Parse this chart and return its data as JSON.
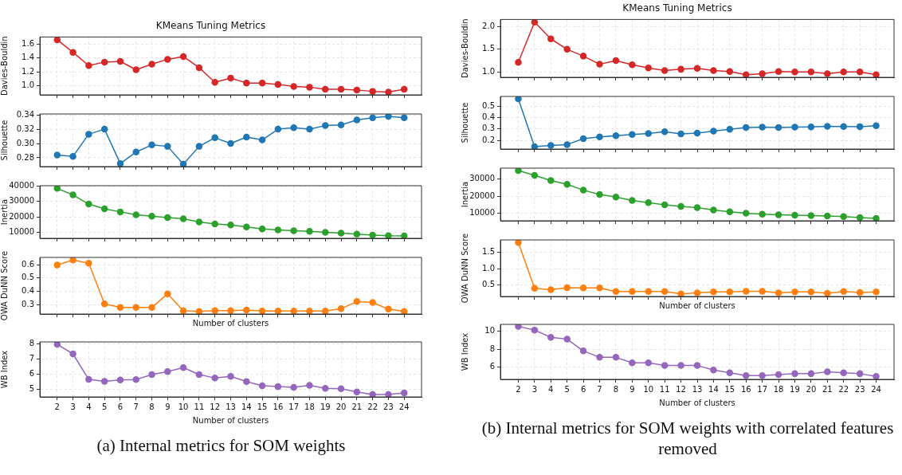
{
  "chart_data": [
    {
      "type": "line",
      "title": "KMeans Tuning Metrics",
      "ylabel": "Davies-Bouldin",
      "x": [
        2,
        3,
        4,
        5,
        6,
        7,
        8,
        9,
        10,
        11,
        12,
        13,
        14,
        15,
        16,
        17,
        18,
        19,
        20,
        21,
        22,
        23,
        24
      ],
      "xlim": [
        0.9,
        25.1
      ],
      "xticks": [
        2,
        3,
        4,
        5,
        6,
        7,
        8,
        9,
        10,
        11,
        12,
        13,
        14,
        15,
        16,
        17,
        18,
        19,
        20,
        21,
        22,
        23,
        24
      ],
      "ylim": [
        0.87,
        1.7
      ],
      "yticks": [
        {
          "value": 1,
          "label": "1.0"
        },
        1.2,
        1.4,
        1.6
      ],
      "tick_labels": "y",
      "grid": true,
      "marker": "circle",
      "series": [
        {
          "color": "#d62728",
          "values": [
            1.66,
            1.48,
            1.29,
            1.34,
            1.35,
            1.23,
            1.31,
            1.38,
            1.42,
            1.26,
            1.05,
            1.11,
            1.04,
            1.04,
            1.02,
            0.99,
            0.98,
            0.95,
            0.95,
            0.94,
            0.92,
            0.91,
            0.95
          ]
        }
      ]
    },
    {
      "type": "line",
      "ylabel": "Silhouette",
      "x": [
        2,
        3,
        4,
        5,
        6,
        7,
        8,
        9,
        10,
        11,
        12,
        13,
        14,
        15,
        16,
        17,
        18,
        19,
        20,
        21,
        22,
        23,
        24
      ],
      "xlim": [
        0.9,
        25.1
      ],
      "xticks": [
        2,
        3,
        4,
        5,
        6,
        7,
        8,
        9,
        10,
        11,
        12,
        13,
        14,
        15,
        16,
        17,
        18,
        19,
        20,
        21,
        22,
        23,
        24
      ],
      "ylim": [
        0.2677,
        0.3413
      ],
      "yticks": [
        0.28,
        {
          "value": 0.3,
          "label": "0.30"
        },
        0.32,
        0.34
      ],
      "tick_labels": "y",
      "grid": true,
      "marker": "circle",
      "series": [
        {
          "color": "#1f77b4",
          "values": [
            0.284,
            0.282,
            0.313,
            0.32,
            0.272,
            0.288,
            0.298,
            0.296,
            0.271,
            0.296,
            0.308,
            0.3,
            0.309,
            0.305,
            0.32,
            0.322,
            0.32,
            0.325,
            0.326,
            0.333,
            0.336,
            0.338,
            0.336
          ]
        }
      ]
    },
    {
      "type": "line",
      "ylabel": "Inertia",
      "x": [
        2,
        3,
        4,
        5,
        6,
        7,
        8,
        9,
        10,
        11,
        12,
        13,
        14,
        15,
        16,
        17,
        18,
        19,
        20,
        21,
        22,
        23,
        24
      ],
      "xlim": [
        0.9,
        25.1
      ],
      "xticks": [
        2,
        3,
        4,
        5,
        6,
        7,
        8,
        9,
        10,
        11,
        12,
        13,
        14,
        15,
        16,
        17,
        18,
        19,
        20,
        21,
        22,
        23,
        24
      ],
      "ylim": [
        6375,
        40100
      ],
      "yticks": [
        10000,
        20000,
        30000,
        40000
      ],
      "tick_labels": "y",
      "grid": true,
      "marker": "circle",
      "series": [
        {
          "color": "#2ca02c",
          "values": [
            38400,
            34200,
            28300,
            25300,
            23300,
            21500,
            20600,
            19600,
            18900,
            16900,
            15600,
            14900,
            13600,
            12400,
            11800,
            11200,
            10900,
            10200,
            9700,
            9100,
            8400,
            8000,
            7900
          ]
        }
      ]
    },
    {
      "type": "line",
      "ylabel": "OWA DuNN Score",
      "xlabel": "Number of clusters",
      "x": [
        2,
        3,
        4,
        5,
        6,
        7,
        8,
        9,
        10,
        11,
        12,
        13,
        14,
        15,
        16,
        17,
        18,
        19,
        20,
        21,
        22,
        23,
        24
      ],
      "xlim": [
        0.9,
        25.1
      ],
      "xticks": [
        2,
        3,
        4,
        5,
        6,
        7,
        8,
        9,
        10,
        11,
        12,
        13,
        14,
        15,
        16,
        17,
        18,
        19,
        20,
        21,
        22,
        23,
        24
      ],
      "ylim": [
        0.228,
        0.654
      ],
      "yticks": [
        0.3,
        0.4,
        0.5,
        0.6
      ],
      "tick_labels": "y",
      "grid": true,
      "marker": "circle",
      "series": [
        {
          "color": "#ff7f0e",
          "values": [
            0.597,
            0.635,
            0.61,
            0.305,
            0.277,
            0.277,
            0.277,
            0.38,
            0.252,
            0.248,
            0.253,
            0.253,
            0.258,
            0.25,
            0.25,
            0.25,
            0.25,
            0.25,
            0.268,
            0.322,
            0.315,
            0.265,
            0.247
          ]
        }
      ]
    },
    {
      "type": "line",
      "ylabel": "WB Index",
      "xlabel": "Number of clusters",
      "x": [
        2,
        3,
        4,
        5,
        6,
        7,
        8,
        9,
        10,
        11,
        12,
        13,
        14,
        15,
        16,
        17,
        18,
        19,
        20,
        21,
        22,
        23,
        24
      ],
      "xlim": [
        0.9,
        25.1
      ],
      "xticks": [
        2,
        3,
        4,
        5,
        6,
        7,
        8,
        9,
        10,
        11,
        12,
        13,
        14,
        15,
        16,
        17,
        18,
        19,
        20,
        21,
        22,
        23,
        24
      ],
      "ylim": [
        4.52,
        8.11
      ],
      "yticks": [
        5,
        6,
        7,
        8
      ],
      "grid": true,
      "marker": "circle",
      "annotations": [
        "(a) Internal metrics for SOM weights"
      ],
      "series": [
        {
          "color": "#9467bd",
          "values": [
            7.95,
            7.33,
            5.66,
            5.53,
            5.63,
            5.65,
            5.98,
            6.17,
            6.43,
            5.98,
            5.75,
            5.86,
            5.52,
            5.25,
            5.19,
            5.15,
            5.27,
            5.08,
            5.05,
            4.85,
            4.68,
            4.68,
            4.78
          ]
        }
      ]
    },
    {
      "type": "line",
      "title": "KMeans Tuning Metrics",
      "ylabel": "Davies-Bouldin",
      "x": [
        2,
        3,
        4,
        5,
        6,
        7,
        8,
        9,
        10,
        11,
        12,
        13,
        14,
        15,
        16,
        17,
        18,
        19,
        20,
        21,
        22,
        23,
        24
      ],
      "xlim": [
        0.9,
        25.1
      ],
      "xticks": [
        2,
        3,
        4,
        5,
        6,
        7,
        8,
        9,
        10,
        11,
        12,
        13,
        14,
        15,
        16,
        17,
        18,
        19,
        20,
        21,
        22,
        23,
        24
      ],
      "ylim": [
        0.882,
        2.158
      ],
      "yticks": [
        {
          "value": 1,
          "label": "1.0"
        },
        1.5,
        {
          "value": 2,
          "label": "2.0"
        }
      ],
      "tick_labels": "y",
      "grid": true,
      "marker": "circle",
      "series": [
        {
          "color": "#d62728",
          "values": [
            1.21,
            2.1,
            1.73,
            1.5,
            1.35,
            1.17,
            1.25,
            1.16,
            1.09,
            1.03,
            1.06,
            1.08,
            1.03,
            1.01,
            0.94,
            0.96,
            1.01,
            1.0,
            1.0,
            0.96,
            1.0,
            1.0,
            0.94
          ]
        }
      ]
    },
    {
      "type": "line",
      "ylabel": "Silhouette",
      "x": [
        2,
        3,
        4,
        5,
        6,
        7,
        8,
        9,
        10,
        11,
        12,
        13,
        14,
        15,
        16,
        17,
        18,
        19,
        20,
        21,
        22,
        23,
        24
      ],
      "xlim": [
        0.9,
        25.1
      ],
      "xticks": [
        2,
        3,
        4,
        5,
        6,
        7,
        8,
        9,
        10,
        11,
        12,
        13,
        14,
        15,
        16,
        17,
        18,
        19,
        20,
        21,
        22,
        23,
        24
      ],
      "ylim": [
        0.124,
        0.584
      ],
      "yticks": [
        0.2,
        0.3,
        0.4,
        0.5
      ],
      "tick_labels": "y",
      "grid": true,
      "marker": "circle",
      "series": [
        {
          "color": "#1f77b4",
          "values": [
            0.563,
            0.145,
            0.155,
            0.163,
            0.215,
            0.23,
            0.24,
            0.252,
            0.26,
            0.276,
            0.256,
            0.264,
            0.28,
            0.297,
            0.312,
            0.315,
            0.312,
            0.315,
            0.318,
            0.322,
            0.321,
            0.32,
            0.328
          ]
        }
      ]
    },
    {
      "type": "line",
      "ylabel": "Inertia",
      "x": [
        2,
        3,
        4,
        5,
        6,
        7,
        8,
        9,
        10,
        11,
        12,
        13,
        14,
        15,
        16,
        17,
        18,
        19,
        20,
        21,
        22,
        23,
        24
      ],
      "xlim": [
        0.9,
        25.1
      ],
      "xticks": [
        2,
        3,
        4,
        5,
        6,
        7,
        8,
        9,
        10,
        11,
        12,
        13,
        14,
        15,
        16,
        17,
        18,
        19,
        20,
        21,
        22,
        23,
        24
      ],
      "ylim": [
        5710,
        36290
      ],
      "yticks": [
        10000,
        20000,
        30000
      ],
      "tick_labels": "y",
      "grid": true,
      "marker": "circle",
      "series": [
        {
          "color": "#2ca02c",
          "values": [
            34900,
            32100,
            29100,
            26900,
            23500,
            21000,
            19500,
            17500,
            16200,
            15000,
            14100,
            13400,
            12000,
            10900,
            10100,
            9500,
            9200,
            9000,
            8700,
            8500,
            8100,
            7600,
            7100
          ]
        }
      ]
    },
    {
      "type": "line",
      "ylabel": "OWA DuNN Score",
      "xlabel": "Number of clusters",
      "x": [
        2,
        3,
        4,
        5,
        6,
        7,
        8,
        9,
        10,
        11,
        12,
        13,
        14,
        15,
        16,
        17,
        18,
        19,
        20,
        21,
        22,
        23,
        24
      ],
      "xlim": [
        0.9,
        25.1
      ],
      "xticks": [
        2,
        3,
        4,
        5,
        6,
        7,
        8,
        9,
        10,
        11,
        12,
        13,
        14,
        15,
        16,
        17,
        18,
        19,
        20,
        21,
        22,
        23,
        24
      ],
      "ylim": [
        0.15,
        1.88
      ],
      "yticks": [
        0.5,
        {
          "value": 1,
          "label": "1.0"
        },
        1.5
      ],
      "tick_labels": "y",
      "grid": true,
      "marker": "circle",
      "series": [
        {
          "color": "#ff7f0e",
          "values": [
            1.8,
            0.4,
            0.36,
            0.42,
            0.41,
            0.41,
            0.3,
            0.3,
            0.3,
            0.3,
            0.23,
            0.26,
            0.29,
            0.29,
            0.31,
            0.31,
            0.26,
            0.29,
            0.29,
            0.25,
            0.3,
            0.27,
            0.29
          ]
        }
      ]
    },
    {
      "type": "line",
      "ylabel": "WB Index",
      "xlabel": "Number of clusters",
      "x": [
        2,
        3,
        4,
        5,
        6,
        7,
        8,
        9,
        10,
        11,
        12,
        13,
        14,
        15,
        16,
        17,
        18,
        19,
        20,
        21,
        22,
        23,
        24
      ],
      "xlim": [
        0.9,
        25.1
      ],
      "xticks": [
        2,
        3,
        4,
        5,
        6,
        7,
        8,
        9,
        10,
        11,
        12,
        13,
        14,
        15,
        16,
        17,
        18,
        19,
        20,
        21,
        22,
        23,
        24
      ],
      "ylim": [
        4.675,
        10.725
      ],
      "yticks": [
        6,
        8,
        10
      ],
      "grid": true,
      "marker": "circle",
      "annotations": [
        "(b) Internal metrics for SOM weights with correlated features removed"
      ],
      "series": [
        {
          "color": "#9467bd",
          "values": [
            10.5,
            10.1,
            9.3,
            9.1,
            7.8,
            7.1,
            7.1,
            6.5,
            6.5,
            6.2,
            6.2,
            6.2,
            5.7,
            5.4,
            5.1,
            5.1,
            5.2,
            5.3,
            5.3,
            5.5,
            5.4,
            5.3,
            5.0
          ]
        }
      ]
    }
  ]
}
